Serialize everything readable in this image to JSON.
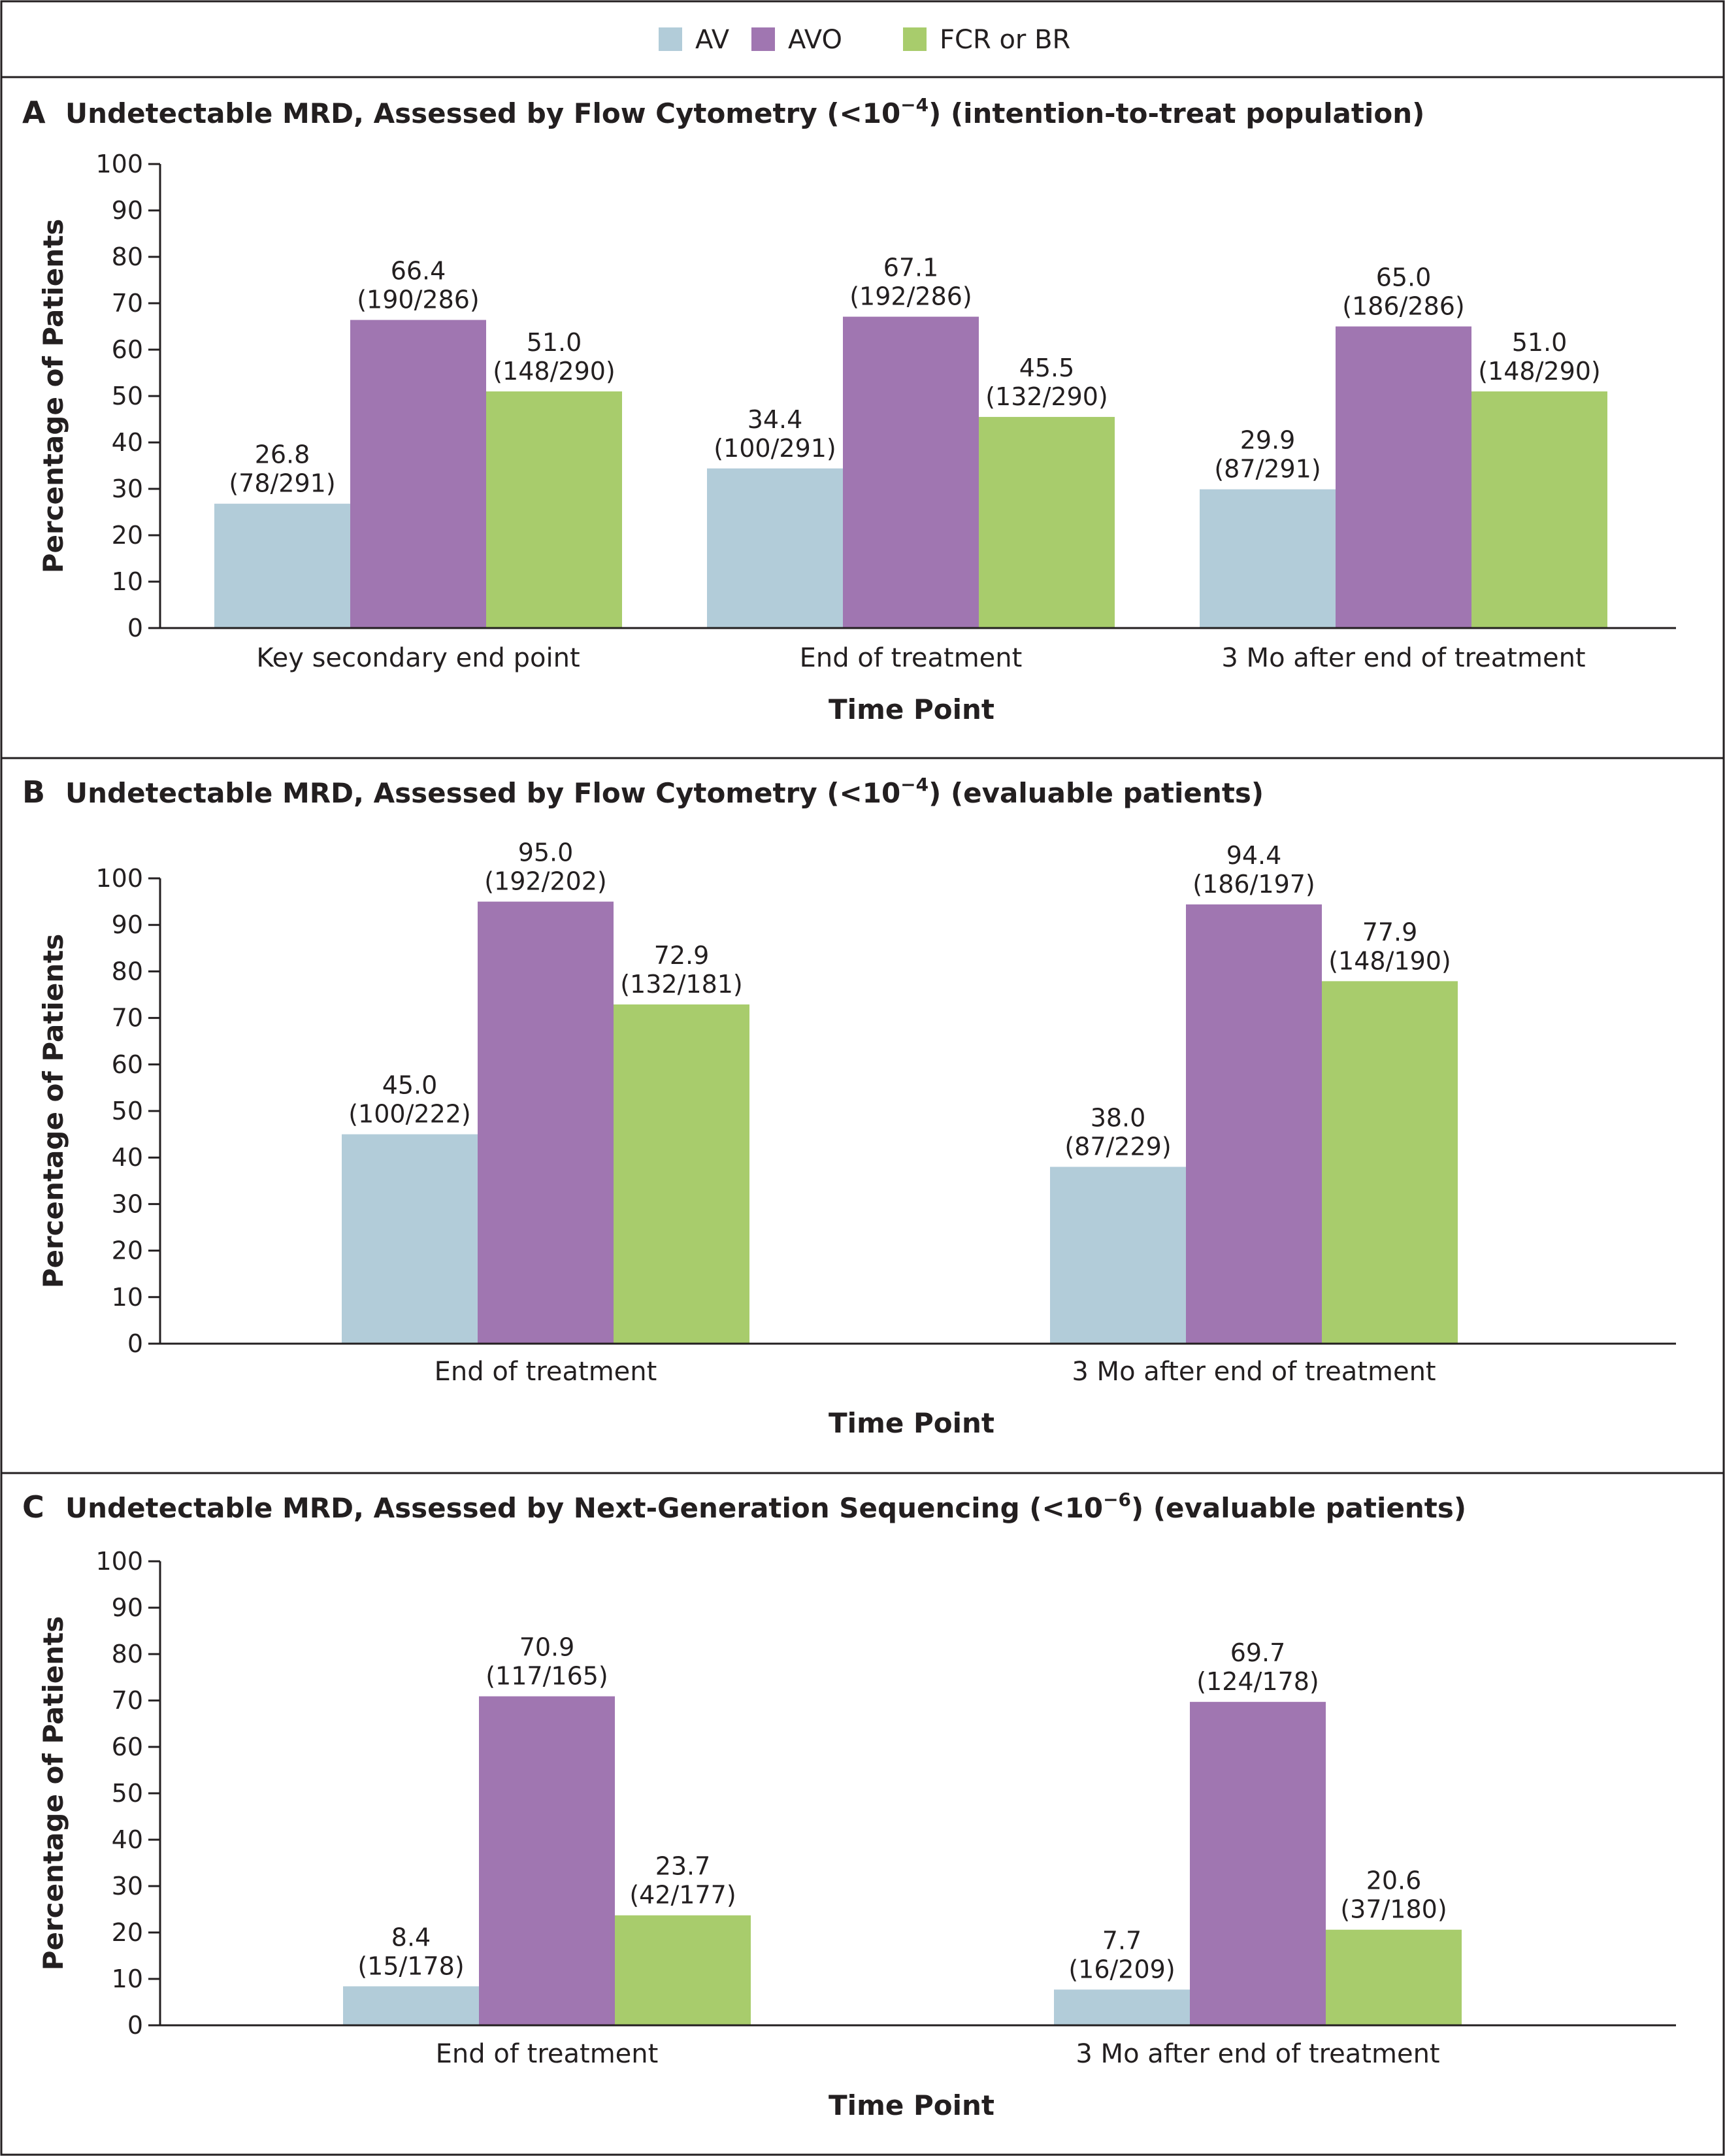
{
  "legend": [
    {
      "label": "AV",
      "color": "#b2ccd9"
    },
    {
      "label": "AVO",
      "color": "#a076b1"
    },
    {
      "label": "FCR or BR",
      "color": "#a8cc6c"
    }
  ],
  "chart_data": [
    {
      "type": "bar",
      "letter": "A",
      "title_parts": {
        "before": "Undetectable MRD, Assessed by Flow Cytometry (<10",
        "exp": "−4",
        "after": ") (intention-to-treat population)"
      },
      "xlabel": "Time Point",
      "ylabel": "Percentage of Patients",
      "ylim": [
        0,
        100
      ],
      "yticks": [
        0,
        10,
        20,
        30,
        40,
        50,
        60,
        70,
        80,
        90,
        100
      ],
      "categories": [
        "Key secondary end point",
        "End of treatment",
        "3 Mo after end of treatment"
      ],
      "series": [
        {
          "name": "AV",
          "color": "#b2ccd9",
          "values": [
            26.8,
            34.4,
            29.9
          ],
          "labels": [
            "26.8",
            "34.4",
            "29.9"
          ],
          "counts": [
            "(78/291)",
            "(100/291)",
            "(87/291)"
          ]
        },
        {
          "name": "AVO",
          "color": "#a076b1",
          "values": [
            66.4,
            67.1,
            65.0
          ],
          "labels": [
            "66.4",
            "67.1",
            "65.0"
          ],
          "counts": [
            "(190/286)",
            "(192/286)",
            "(186/286)"
          ]
        },
        {
          "name": "FCR or BR",
          "color": "#a8cc6c",
          "values": [
            51.0,
            45.5,
            51.0
          ],
          "labels": [
            "51.0",
            "45.5",
            "51.0"
          ],
          "counts": [
            "(148/290)",
            "(132/290)",
            "(148/290)"
          ]
        }
      ]
    },
    {
      "type": "bar",
      "letter": "B",
      "title_parts": {
        "before": "Undetectable MRD, Assessed by Flow Cytometry (<10",
        "exp": "−4",
        "after": ") (evaluable patients)"
      },
      "xlabel": "Time Point",
      "ylabel": "Percentage of Patients",
      "ylim": [
        0,
        100
      ],
      "yticks": [
        0,
        10,
        20,
        30,
        40,
        50,
        60,
        70,
        80,
        90,
        100
      ],
      "categories": [
        "End of treatment",
        "3 Mo after end of treatment"
      ],
      "series": [
        {
          "name": "AV",
          "color": "#b2ccd9",
          "values": [
            45.0,
            38.0
          ],
          "labels": [
            "45.0",
            "38.0"
          ],
          "counts": [
            "(100/222)",
            "(87/229)"
          ]
        },
        {
          "name": "AVO",
          "color": "#a076b1",
          "values": [
            95.0,
            94.4
          ],
          "labels": [
            "95.0",
            "94.4"
          ],
          "counts": [
            "(192/202)",
            "(186/197)"
          ]
        },
        {
          "name": "FCR or BR",
          "color": "#a8cc6c",
          "values": [
            72.9,
            77.9
          ],
          "labels": [
            "72.9",
            "77.9"
          ],
          "counts": [
            "(132/181)",
            "(148/190)"
          ]
        }
      ]
    },
    {
      "type": "bar",
      "letter": "C",
      "title_parts": {
        "before": "Undetectable MRD, Assessed by Next-Generation Sequencing (<10",
        "exp": "−6",
        "after": ") (evaluable patients)"
      },
      "xlabel": "Time Point",
      "ylabel": "Percentage of Patients",
      "ylim": [
        0,
        100
      ],
      "yticks": [
        0,
        10,
        20,
        30,
        40,
        50,
        60,
        70,
        80,
        90,
        100
      ],
      "categories": [
        "End of treatment",
        "3 Mo after end of treatment"
      ],
      "series": [
        {
          "name": "AV",
          "color": "#b2ccd9",
          "values": [
            8.4,
            7.7
          ],
          "labels": [
            "8.4",
            "7.7"
          ],
          "counts": [
            "(15/178)",
            "(16/209)"
          ]
        },
        {
          "name": "AVO",
          "color": "#a076b1",
          "values": [
            70.9,
            69.7
          ],
          "labels": [
            "70.9",
            "69.7"
          ],
          "counts": [
            "(117/165)",
            "(124/178)"
          ]
        },
        {
          "name": "FCR or BR",
          "color": "#a8cc6c",
          "values": [
            23.7,
            20.6
          ],
          "labels": [
            "23.7",
            "20.6"
          ],
          "counts": [
            "(42/177)",
            "(37/180)"
          ]
        }
      ]
    }
  ]
}
